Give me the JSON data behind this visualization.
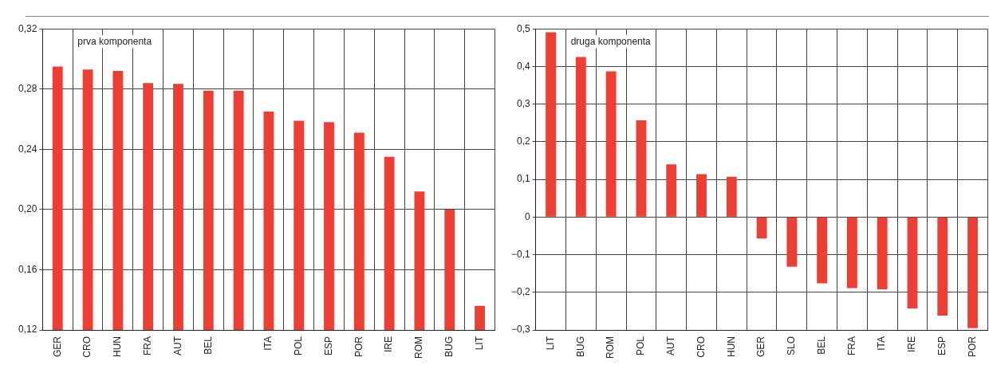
{
  "chart_data": [
    {
      "type": "bar",
      "categories": [
        "GER",
        "CRO",
        "HUN",
        "FRA",
        "AUT",
        "BEL",
        null,
        "ITA",
        "POL",
        "ESP",
        "POR",
        "IRE",
        "ROM",
        "BUG",
        "LIT"
      ],
      "values": [
        0.295,
        0.293,
        0.292,
        0.284,
        0.2835,
        0.279,
        0.279,
        0.265,
        0.259,
        0.258,
        0.251,
        0.235,
        0.212,
        0.2,
        0.136
      ],
      "color": "#ee3e34",
      "ylim": [
        0.12,
        0.32
      ],
      "yticks": [
        {
          "value": 0.12,
          "label": "0,12"
        },
        {
          "value": 0.16,
          "label": "0,16"
        },
        {
          "value": 0.2,
          "label": "0,20"
        },
        {
          "value": 0.24,
          "label": "0,24"
        },
        {
          "value": 0.28,
          "label": "0,28"
        },
        {
          "value": 0.32,
          "label": "0,32"
        }
      ],
      "grid": true,
      "annotations": [
        "prva komponenta"
      ]
    },
    {
      "type": "bar",
      "categories": [
        "LIT",
        "BUG",
        "ROM",
        "POL",
        "AUT",
        "CRO",
        "HUN",
        "GER",
        "SLO",
        "BEL",
        "FRA",
        "ITA",
        "IRE",
        "ESP",
        "POR"
      ],
      "values": [
        0.491,
        0.425,
        0.387,
        0.257,
        0.14,
        0.114,
        0.107,
        -0.057,
        -0.132,
        -0.176,
        -0.189,
        -0.192,
        -0.243,
        -0.262,
        -0.295
      ],
      "color": "#ee3e34",
      "ylim": [
        -0.3,
        0.5
      ],
      "yticks": [
        {
          "value": -0.3,
          "label": "−0,3"
        },
        {
          "value": -0.2,
          "label": "−0,2"
        },
        {
          "value": -0.1,
          "label": "−0,1"
        },
        0,
        {
          "value": 0.1,
          "label": "0,1"
        },
        {
          "value": 0.2,
          "label": "0,2"
        },
        {
          "value": 0.3,
          "label": "0,3"
        },
        {
          "value": 0.4,
          "label": "0,4"
        },
        {
          "value": 0.5,
          "label": "0,5"
        }
      ],
      "grid": true,
      "annotations": [
        "druga komponenta"
      ]
    }
  ]
}
